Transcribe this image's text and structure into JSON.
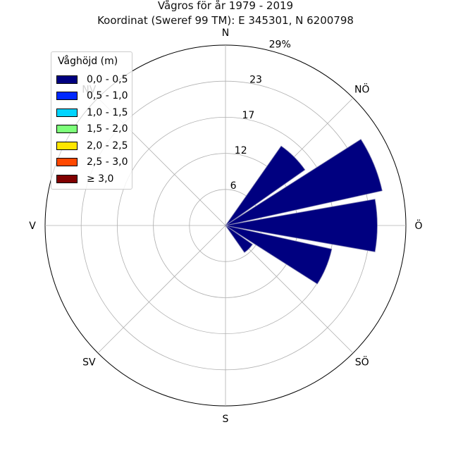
{
  "chart_data": {
    "type": "wind-rose",
    "title": "Vågros för år 1979 - 2019",
    "subtitle": "Koordinat (Sweref 99 TM): E 345301, N 6200798",
    "directions": [
      {
        "label": "N",
        "angle": 0
      },
      {
        "label": "NÖ",
        "angle": 45
      },
      {
        "label": "Ö",
        "angle": 90
      },
      {
        "label": "SÖ",
        "angle": 135
      },
      {
        "label": "S",
        "angle": 180
      },
      {
        "label": "SV",
        "angle": 225
      },
      {
        "label": "V",
        "angle": 270
      },
      {
        "label": "NV",
        "angle": 315
      }
    ],
    "radial_ticks": [
      {
        "label": "6",
        "value": 5.8
      },
      {
        "label": "12",
        "value": 11.6
      },
      {
        "label": "17",
        "value": 17.4
      },
      {
        "label": "23",
        "value": 23.2
      },
      {
        "label": "29%",
        "value": 29
      }
    ],
    "rmax": 29,
    "legend": {
      "title": "Våghöjd (m)",
      "entries": [
        {
          "label": "0,0 - 0,5",
          "color": "#000080"
        },
        {
          "label": "0,5 - 1,0",
          "color": "#0028ff"
        },
        {
          "label": "1,0 - 1,5",
          "color": "#00d4ff"
        },
        {
          "label": "1,5 - 2,0",
          "color": "#7dff7a"
        },
        {
          "label": "2,0 - 2,5",
          "color": "#ffe600"
        },
        {
          "label": "2,5 - 3,0",
          "color": "#ff4800"
        },
        {
          "label": "≥ 3,0",
          "color": "#800000"
        }
      ],
      "placement": "upper-left"
    },
    "sector_width_deg": 20,
    "series": [
      {
        "bin": "0,0 - 0,5",
        "values": [
          {
            "direction": 0,
            "value": 0
          },
          {
            "direction": 22.5,
            "value": 0
          },
          {
            "direction": 45,
            "value": 15.6
          },
          {
            "direction": 67.5,
            "value": 25.8
          },
          {
            "direction": 90,
            "value": 24.4
          },
          {
            "direction": 112.5,
            "value": 17.5
          },
          {
            "direction": 135,
            "value": 5.3
          },
          {
            "direction": 157.5,
            "value": 0
          },
          {
            "direction": 180,
            "value": 0
          },
          {
            "direction": 202.5,
            "value": 0
          },
          {
            "direction": 225,
            "value": 0
          },
          {
            "direction": 247.5,
            "value": 0
          },
          {
            "direction": 270,
            "value": 0
          },
          {
            "direction": 292.5,
            "value": 0
          },
          {
            "direction": 315,
            "value": 0
          },
          {
            "direction": 337.5,
            "value": 0
          }
        ]
      }
    ],
    "grid": true
  }
}
